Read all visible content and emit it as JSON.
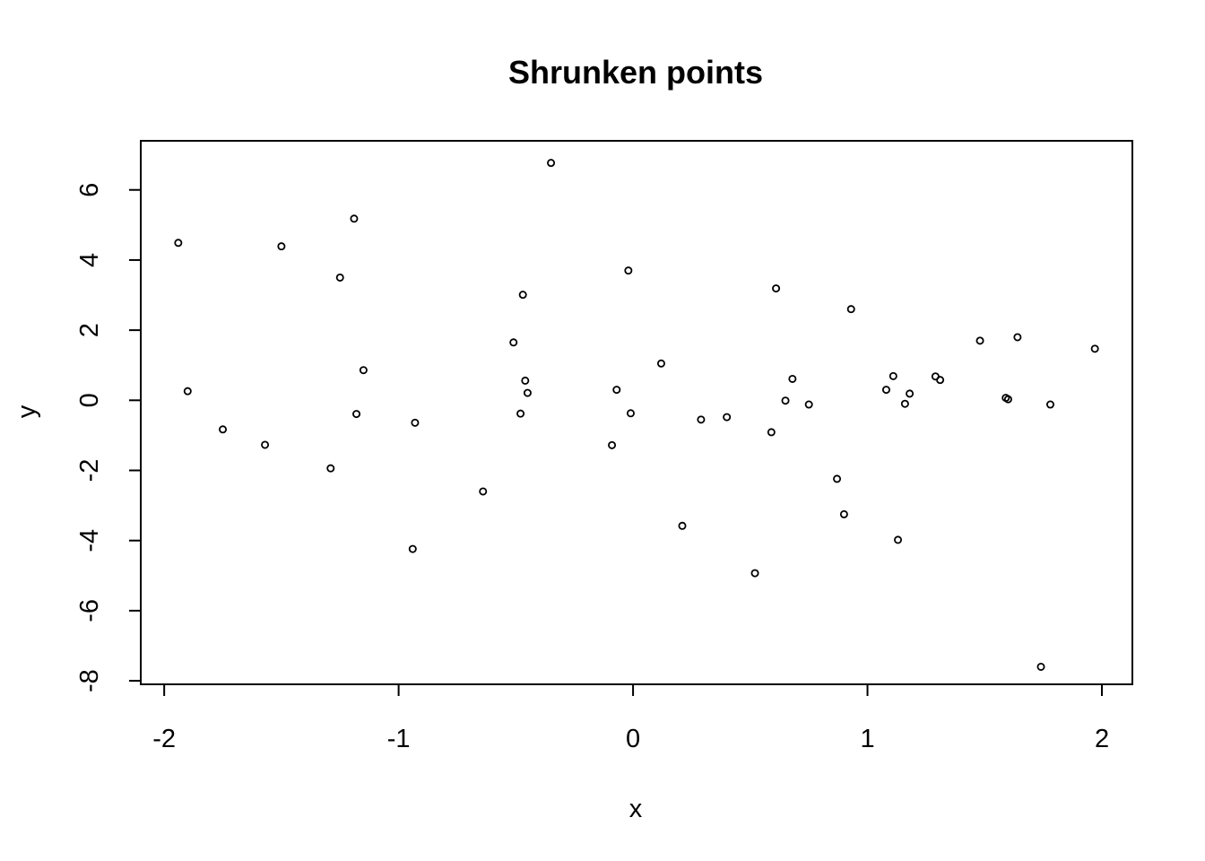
{
  "chart_data": {
    "type": "scatter",
    "title": "Shrunken points",
    "xlabel": "x",
    "ylabel": "y",
    "xlim": [
      -2.1,
      2.13
    ],
    "ylim": [
      -8.1,
      7.4
    ],
    "x_ticks": [
      -2,
      -1,
      0,
      1,
      2
    ],
    "y_ticks": [
      -8,
      -6,
      -4,
      -2,
      0,
      2,
      4,
      6
    ],
    "x_tick_labels": [
      "-2",
      "-1",
      "0",
      "1",
      "2"
    ],
    "y_tick_labels": [
      "-8",
      "-6",
      "-4",
      "-2",
      "0",
      "2",
      "4",
      "6"
    ],
    "grid": false,
    "marker": "open-circle",
    "color": "#000000",
    "points": [
      {
        "x": -1.94,
        "y": 4.49
      },
      {
        "x": -1.9,
        "y": 0.26
      },
      {
        "x": -1.75,
        "y": -0.83
      },
      {
        "x": -1.57,
        "y": -1.27
      },
      {
        "x": -1.5,
        "y": 4.39
      },
      {
        "x": -1.29,
        "y": -1.94
      },
      {
        "x": -1.25,
        "y": 3.5
      },
      {
        "x": -1.19,
        "y": 5.18
      },
      {
        "x": -1.18,
        "y": -0.39
      },
      {
        "x": -1.15,
        "y": 0.86
      },
      {
        "x": -0.94,
        "y": -4.24
      },
      {
        "x": -0.93,
        "y": -0.64
      },
      {
        "x": -0.64,
        "y": -2.6
      },
      {
        "x": -0.51,
        "y": 1.65
      },
      {
        "x": -0.48,
        "y": -0.38
      },
      {
        "x": -0.47,
        "y": 3.01
      },
      {
        "x": -0.46,
        "y": 0.56
      },
      {
        "x": -0.45,
        "y": 0.21
      },
      {
        "x": -0.35,
        "y": 6.77
      },
      {
        "x": -0.09,
        "y": -1.28
      },
      {
        "x": -0.07,
        "y": 0.3
      },
      {
        "x": -0.02,
        "y": 3.7
      },
      {
        "x": -0.01,
        "y": -0.37
      },
      {
        "x": 0.12,
        "y": 1.05
      },
      {
        "x": 0.21,
        "y": -3.58
      },
      {
        "x": 0.29,
        "y": -0.55
      },
      {
        "x": 0.4,
        "y": -0.48
      },
      {
        "x": 0.52,
        "y": -4.93
      },
      {
        "x": 0.59,
        "y": -0.91
      },
      {
        "x": 0.61,
        "y": 3.19
      },
      {
        "x": 0.65,
        "y": -0.01
      },
      {
        "x": 0.68,
        "y": 0.61
      },
      {
        "x": 0.75,
        "y": -0.12
      },
      {
        "x": 0.87,
        "y": -2.24
      },
      {
        "x": 0.9,
        "y": -3.25
      },
      {
        "x": 0.93,
        "y": 2.6
      },
      {
        "x": 1.08,
        "y": 0.3
      },
      {
        "x": 1.11,
        "y": 0.69
      },
      {
        "x": 1.13,
        "y": -3.98
      },
      {
        "x": 1.16,
        "y": -0.1
      },
      {
        "x": 1.18,
        "y": 0.19
      },
      {
        "x": 1.29,
        "y": 0.68
      },
      {
        "x": 1.31,
        "y": 0.58
      },
      {
        "x": 1.48,
        "y": 1.7
      },
      {
        "x": 1.59,
        "y": 0.07
      },
      {
        "x": 1.6,
        "y": 0.03
      },
      {
        "x": 1.64,
        "y": 1.8
      },
      {
        "x": 1.74,
        "y": -7.6
      },
      {
        "x": 1.78,
        "y": -0.12
      },
      {
        "x": 1.97,
        "y": 1.47
      }
    ]
  }
}
